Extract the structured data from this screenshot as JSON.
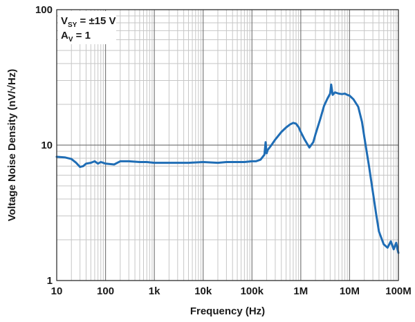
{
  "chart_data": {
    "type": "line",
    "x_scale": "log",
    "y_scale": "log",
    "xlim": [
      10,
      100000000
    ],
    "ylim": [
      1,
      100
    ],
    "grid": true,
    "xlabel": "Frequency (Hz)",
    "ylabel": "Voltage Noise Density (nV/√Hz)",
    "x_ticks": [
      {
        "value": 10,
        "label": "10"
      },
      {
        "value": 100,
        "label": "100"
      },
      {
        "value": 1000,
        "label": "1k"
      },
      {
        "value": 10000,
        "label": "10k"
      },
      {
        "value": 100000,
        "label": "100k"
      },
      {
        "value": 1000000,
        "label": "1M"
      },
      {
        "value": 10000000,
        "label": "10M"
      },
      {
        "value": 100000000,
        "label": "100M"
      }
    ],
    "y_ticks": [
      {
        "value": 1,
        "label": "1"
      },
      {
        "value": 10,
        "label": "10"
      },
      {
        "value": 100,
        "label": "100"
      }
    ],
    "conditions": [
      {
        "main": "V",
        "sub": "SY",
        "rest": " = ±15 V"
      },
      {
        "main": "A",
        "sub": "V",
        "rest": " = 1"
      }
    ],
    "series": [
      {
        "color": "#1f6db5",
        "x": [
          10,
          15,
          20,
          25,
          30,
          35,
          40,
          50,
          60,
          70,
          80,
          90,
          100,
          150,
          200,
          300,
          500,
          700,
          1000,
          2000,
          3000,
          5000,
          10000,
          20000,
          30000,
          50000,
          70000,
          100000,
          120000,
          150000,
          180000,
          190000,
          200000,
          210000,
          250000,
          300000,
          400000,
          500000,
          600000,
          700000,
          800000,
          900000,
          1000000,
          1200000,
          1500000,
          1800000,
          2000000,
          2500000,
          3000000,
          3500000,
          4000000,
          4200000,
          4500000,
          5000000,
          6000000,
          7000000,
          8000000,
          9000000,
          10000000,
          12000000,
          15000000,
          18000000,
          20000000,
          25000000,
          30000000,
          35000000,
          40000000,
          50000000,
          60000000,
          70000000,
          80000000,
          90000000,
          100000000
        ],
        "y": [
          8.2,
          8.1,
          7.9,
          7.4,
          6.9,
          7.0,
          7.3,
          7.4,
          7.6,
          7.3,
          7.5,
          7.4,
          7.3,
          7.2,
          7.6,
          7.6,
          7.5,
          7.5,
          7.4,
          7.4,
          7.4,
          7.4,
          7.5,
          7.4,
          7.5,
          7.5,
          7.5,
          7.6,
          7.6,
          7.8,
          8.5,
          10.5,
          8.7,
          9.2,
          10.0,
          11.0,
          12.5,
          13.5,
          14.2,
          14.6,
          14.4,
          13.6,
          12.5,
          11.0,
          9.6,
          10.5,
          12.0,
          15.5,
          19.5,
          22.0,
          24.0,
          28.0,
          23.5,
          24.5,
          24.0,
          23.8,
          24.0,
          23.5,
          23.2,
          21.8,
          19.2,
          14.8,
          11.5,
          7.0,
          4.5,
          3.1,
          2.3,
          1.85,
          1.75,
          1.95,
          1.7,
          1.9,
          1.6
        ]
      }
    ]
  }
}
